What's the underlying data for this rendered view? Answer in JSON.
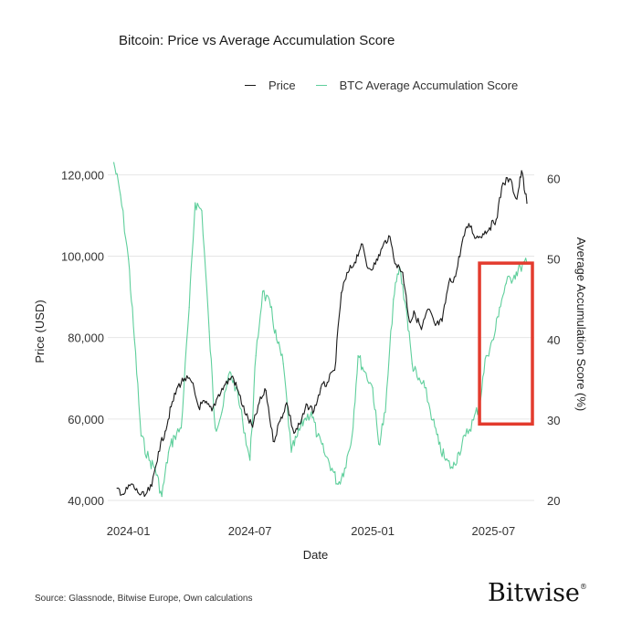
{
  "title": "Bitcoin: Price vs Average Accumulation Score",
  "source": "Source: Glassnode, Bitwise Europe, Own calculations",
  "brand": "Bitwise",
  "brand_mark": "®",
  "colors": {
    "price": "#1a1a1a",
    "score": "#5fcf9c",
    "highlight": "#e33b2e",
    "grid": "#e6e6e6"
  },
  "chart_data": {
    "type": "line",
    "title": "Bitcoin: Price vs Average Accumulation Score",
    "xlabel": "Date",
    "ylabel": "Price (USD)",
    "y2label": "Average Accumulation Score (%)",
    "xlim": [
      "2023-12-01",
      "2025-08-31"
    ],
    "ylim": [
      40000,
      123000
    ],
    "y2lim": [
      20,
      62
    ],
    "x_ticks": [
      "2024-01",
      "2024-07",
      "2025-01",
      "2025-07"
    ],
    "y_ticks": [
      "40,000",
      "60,000",
      "80,000",
      "100,000",
      "120,000"
    ],
    "y2_ticks": [
      "20",
      "30",
      "40",
      "50",
      "60"
    ],
    "y_tick_values": [
      40000,
      60000,
      80000,
      100000,
      120000
    ],
    "y2_tick_values": [
      20,
      30,
      40,
      50,
      60
    ],
    "grid": "horizontal",
    "legend_position": "top",
    "highlight_box": {
      "x": [
        "2025-06-10",
        "2025-08-31"
      ],
      "y2": [
        29.5,
        49.5
      ]
    },
    "series": [
      {
        "name": "Price",
        "axis": "left",
        "x": [
          "2023-12-15",
          "2023-12-25",
          "2024-01-05",
          "2024-01-15",
          "2024-01-25",
          "2024-02-05",
          "2024-02-15",
          "2024-02-25",
          "2024-03-05",
          "2024-03-15",
          "2024-03-25",
          "2024-04-05",
          "2024-04-15",
          "2024-04-25",
          "2024-05-05",
          "2024-05-15",
          "2024-05-25",
          "2024-06-05",
          "2024-06-15",
          "2024-06-25",
          "2024-07-05",
          "2024-07-15",
          "2024-07-25",
          "2024-08-05",
          "2024-08-15",
          "2024-08-25",
          "2024-09-05",
          "2024-09-15",
          "2024-09-25",
          "2024-10-05",
          "2024-10-15",
          "2024-10-25",
          "2024-11-05",
          "2024-11-15",
          "2024-11-25",
          "2024-12-05",
          "2024-12-15",
          "2024-12-25",
          "2025-01-05",
          "2025-01-15",
          "2025-01-25",
          "2025-02-05",
          "2025-02-15",
          "2025-02-25",
          "2025-03-05",
          "2025-03-15",
          "2025-03-25",
          "2025-04-05",
          "2025-04-15",
          "2025-04-25",
          "2025-05-05",
          "2025-05-15",
          "2025-05-25",
          "2025-06-05",
          "2025-06-15",
          "2025-06-25",
          "2025-07-05",
          "2025-07-15",
          "2025-07-25",
          "2025-08-05",
          "2025-08-12",
          "2025-08-20"
        ],
        "values": [
          43000,
          41500,
          44000,
          42000,
          41000,
          43500,
          52000,
          57000,
          63000,
          68000,
          70000,
          69000,
          63000,
          64000,
          62000,
          66000,
          68500,
          70500,
          66000,
          61000,
          58000,
          64000,
          67000,
          54500,
          59500,
          64000,
          56500,
          59000,
          63500,
          62000,
          67500,
          69000,
          72000,
          91000,
          96000,
          98500,
          103000,
          97000,
          98000,
          102000,
          105000,
          98000,
          96000,
          84000,
          86000,
          82000,
          87000,
          83000,
          84000,
          93500,
          95000,
          103500,
          108000,
          104500,
          105500,
          107000,
          109000,
          118000,
          119000,
          114000,
          121000,
          113000
        ]
      },
      {
        "name": "BTC Average Accumulation Score",
        "axis": "right",
        "x": [
          "2023-12-10",
          "2023-12-20",
          "2024-01-01",
          "2024-01-10",
          "2024-01-20",
          "2024-02-01",
          "2024-02-10",
          "2024-02-20",
          "2024-03-01",
          "2024-03-10",
          "2024-03-20",
          "2024-04-01",
          "2024-04-10",
          "2024-04-20",
          "2024-05-01",
          "2024-05-10",
          "2024-05-20",
          "2024-06-01",
          "2024-06-10",
          "2024-06-20",
          "2024-07-01",
          "2024-07-10",
          "2024-07-20",
          "2024-08-01",
          "2024-08-10",
          "2024-08-20",
          "2024-09-01",
          "2024-09-10",
          "2024-09-20",
          "2024-10-01",
          "2024-10-10",
          "2024-10-20",
          "2024-11-01",
          "2024-11-10",
          "2024-11-20",
          "2024-12-01",
          "2024-12-10",
          "2024-12-20",
          "2025-01-01",
          "2025-01-10",
          "2025-01-20",
          "2025-02-01",
          "2025-02-10",
          "2025-02-20",
          "2025-03-01",
          "2025-03-10",
          "2025-03-20",
          "2025-04-01",
          "2025-04-10",
          "2025-04-20",
          "2025-05-01",
          "2025-05-10",
          "2025-05-20",
          "2025-06-01",
          "2025-06-10",
          "2025-06-20",
          "2025-07-01",
          "2025-07-10",
          "2025-07-20",
          "2025-08-01",
          "2025-08-10",
          "2025-08-20"
        ],
        "values": [
          62,
          58,
          50,
          40,
          28,
          25,
          24,
          20.5,
          26,
          28,
          29,
          44,
          57,
          56,
          41,
          29,
          31,
          36,
          34,
          30,
          25,
          38,
          46,
          44,
          40,
          37,
          26,
          28,
          30,
          31,
          28,
          26,
          24,
          22,
          24,
          28,
          38,
          36,
          34,
          27,
          31,
          45,
          49,
          44,
          37,
          35,
          34,
          30,
          27,
          25,
          24,
          26,
          28,
          30,
          32,
          38,
          40,
          44,
          47,
          48,
          49,
          49.5
        ]
      }
    ]
  }
}
